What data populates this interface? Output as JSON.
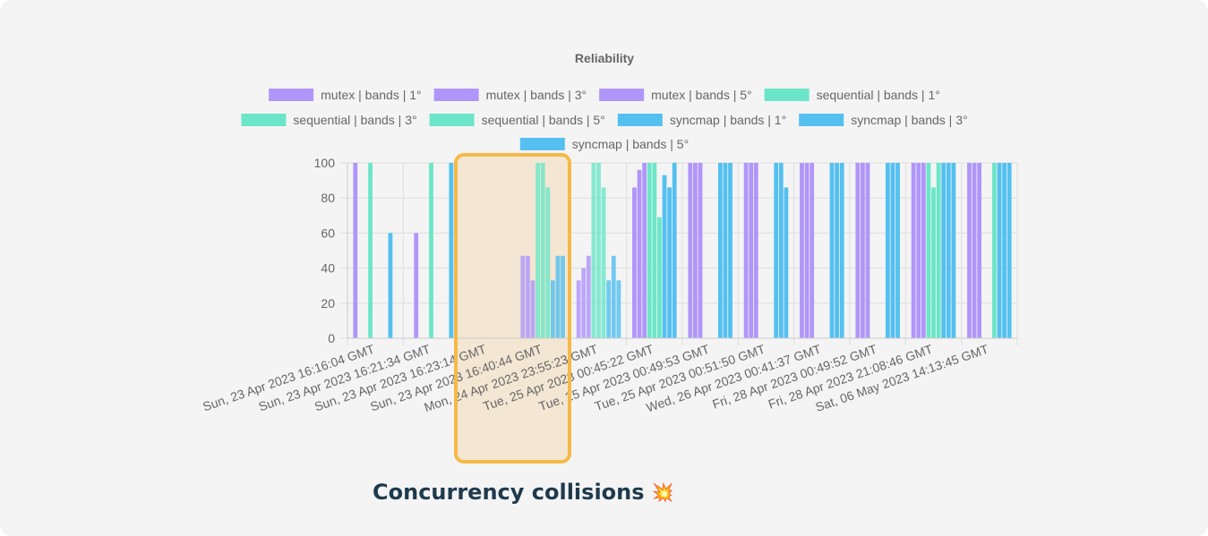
{
  "caption": {
    "text": "Concurrency collisions",
    "icon": "collision-icon",
    "icon_glyph": "💥"
  },
  "highlight": {
    "color": "#f5b948",
    "fill": "#f3e6d2",
    "covers": [
      "Sun, 23 Apr 2023 16:40:44 GMT",
      "Mon, 24 Apr 2023 23:55:23 GMT"
    ]
  },
  "chart_data": {
    "type": "bar",
    "title": "Reliability",
    "xlabel": "",
    "ylabel": "",
    "ylim": [
      0,
      100
    ],
    "yticks": [
      0,
      20,
      40,
      60,
      80,
      100
    ],
    "grid": true,
    "legend_position": "top",
    "categories": [
      "Sun, 23 Apr 2023 16:16:04 GMT",
      "Sun, 23 Apr 2023 16:21:34 GMT",
      "Sun, 23 Apr 2023 16:23:14 GMT",
      "Sun, 23 Apr 2023 16:40:44 GMT",
      "Mon, 24 Apr 2023 23:55:23 GMT",
      "Tue, 25 Apr 2023 00:45:22 GMT",
      "Tue, 25 Apr 2023 00:49:53 GMT",
      "Tue, 25 Apr 2023 00:51:50 GMT",
      "Wed, 26 Apr 2023 00:41:37 GMT",
      "Fri, 28 Apr 2023 00:49:52 GMT",
      "Fri, 28 Apr 2023 21:08:46 GMT",
      "Sat, 06 May 2023 14:13:45 GMT"
    ],
    "series": [
      {
        "name": "mutex | bands | 1°",
        "color": "#b096fa",
        "values": [
          100,
          0,
          0,
          47,
          33,
          86,
          100,
          100,
          100,
          100,
          100,
          100
        ]
      },
      {
        "name": "mutex | bands | 3°",
        "color": "#b096fa",
        "values": [
          0,
          60,
          0,
          47,
          40,
          96,
          100,
          100,
          100,
          100,
          100,
          100
        ]
      },
      {
        "name": "mutex | bands | 5°",
        "color": "#b096fa",
        "values": [
          0,
          0,
          0,
          33,
          47,
          100,
          100,
          100,
          100,
          100,
          100,
          100
        ]
      },
      {
        "name": "sequential | bands | 1°",
        "color": "#6ce6c8",
        "values": [
          100,
          0,
          0,
          100,
          100,
          100,
          0,
          0,
          0,
          0,
          100,
          0
        ]
      },
      {
        "name": "sequential | bands | 3°",
        "color": "#6ce6c8",
        "values": [
          0,
          100,
          0,
          100,
          100,
          100,
          0,
          0,
          0,
          0,
          86,
          0
        ]
      },
      {
        "name": "sequential | bands | 5°",
        "color": "#6ce6c8",
        "values": [
          0,
          0,
          0,
          86,
          86,
          69,
          0,
          0,
          0,
          0,
          100,
          100
        ]
      },
      {
        "name": "syncmap | bands | 1°",
        "color": "#54c0f0",
        "values": [
          0,
          0,
          0,
          33,
          33,
          93,
          100,
          100,
          100,
          100,
          100,
          100
        ]
      },
      {
        "name": "syncmap | bands | 3°",
        "color": "#54c0f0",
        "values": [
          60,
          0,
          0,
          47,
          47,
          86,
          100,
          100,
          100,
          100,
          100,
          100
        ]
      },
      {
        "name": "syncmap | bands | 5°",
        "color": "#54c0f0",
        "values": [
          0,
          100,
          0,
          47,
          33,
          100,
          100,
          86,
          100,
          100,
          100,
          100
        ]
      }
    ]
  }
}
